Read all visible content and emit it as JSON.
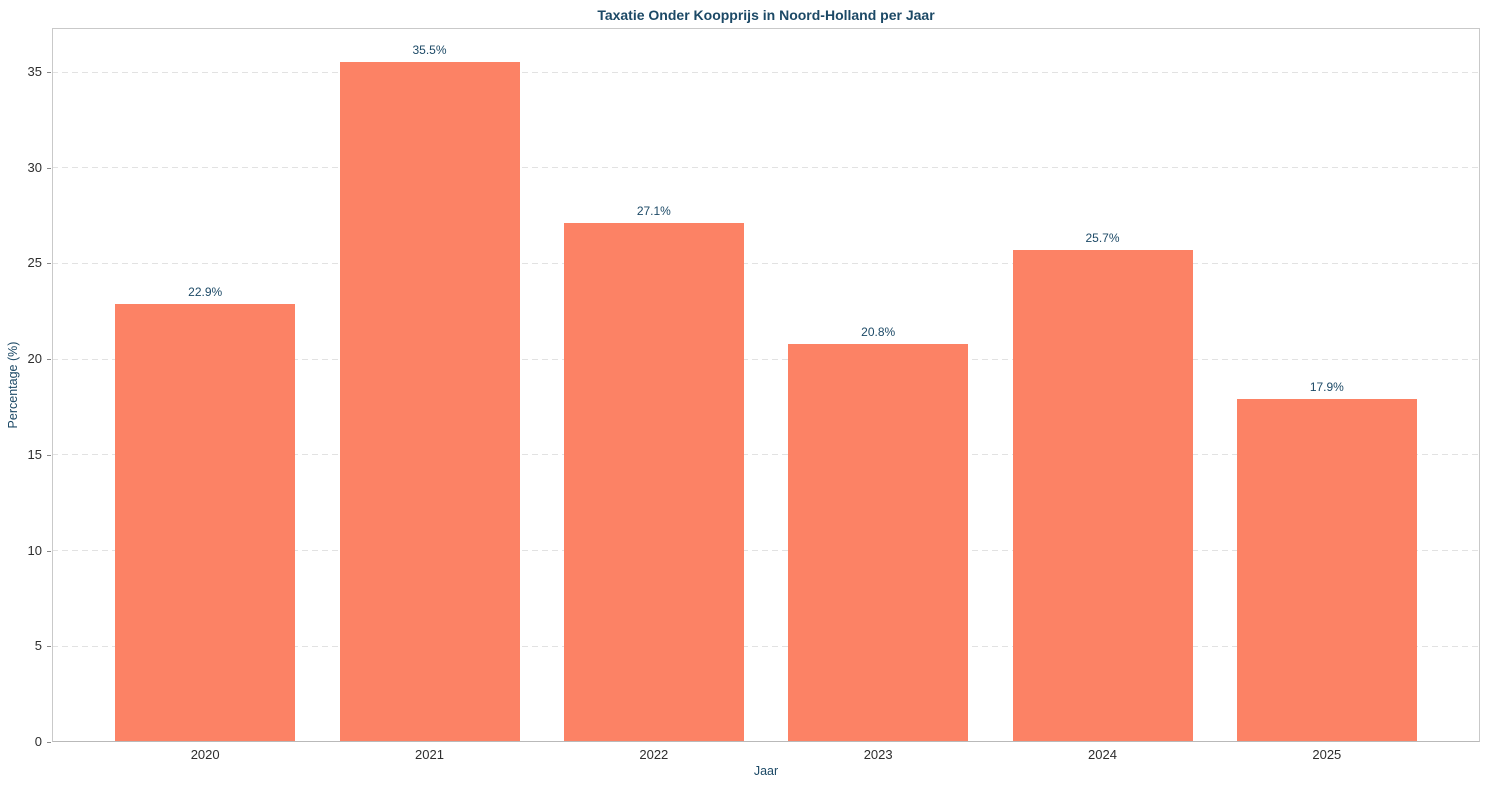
{
  "chart_data": {
    "type": "bar",
    "title": "Taxatie Onder Koopprijs in Noord-Holland per Jaar",
    "xlabel": "Jaar",
    "ylabel": "Percentage (%)",
    "categories": [
      "2020",
      "2021",
      "2022",
      "2023",
      "2024",
      "2025"
    ],
    "values": [
      22.9,
      35.5,
      27.1,
      20.8,
      25.7,
      17.9
    ],
    "value_labels": [
      "22.9%",
      "35.5%",
      "27.1%",
      "20.8%",
      "25.7%",
      "17.9%"
    ],
    "yticks": [
      0,
      5,
      10,
      15,
      20,
      25,
      30,
      35
    ],
    "ylim": [
      0,
      37.3
    ],
    "grid": "horizontal-dashed",
    "legend_position": "none",
    "colors": {
      "bar": "#fc8265",
      "title": "#1c4966",
      "axis_label": "#1c4966",
      "value_label": "#1c4966",
      "tick_label": "#2e2e2e",
      "gridline": "#e2e2e2",
      "spine": "#c9c9c9",
      "background": "#ffffff"
    }
  }
}
